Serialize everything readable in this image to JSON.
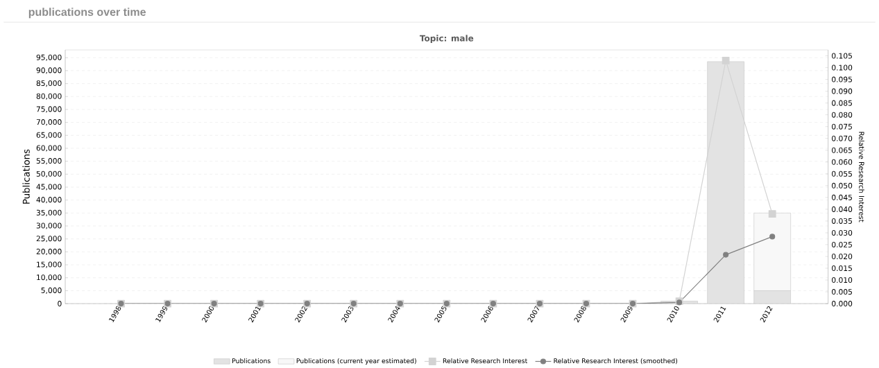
{
  "chart_data": {
    "type": "bar",
    "title": "publications over time",
    "subtitle": "Topic: male",
    "ylabel": "Publications",
    "y2label": "Relative Research Interest",
    "categories": [
      "1998",
      "1999",
      "2000",
      "2001",
      "2002",
      "2003",
      "2004",
      "2005",
      "2006",
      "2007",
      "2008",
      "2009",
      "2010",
      "2011",
      "2012"
    ],
    "stacked": true,
    "series": [
      {
        "name": "Publications",
        "color": "#e3e3e3",
        "values": [
          0,
          0,
          0,
          0,
          0,
          0,
          0,
          0,
          0,
          0,
          0,
          0,
          1000,
          93500,
          5000
        ]
      },
      {
        "name": "Publications (current year estimated)",
        "color": "#f8f8f8",
        "values": [
          null,
          null,
          null,
          null,
          null,
          null,
          null,
          null,
          null,
          null,
          null,
          null,
          null,
          null,
          30000
        ]
      },
      {
        "name": "Relative Research Interest",
        "type": "line",
        "axis": "y2",
        "marker": "square",
        "color": "#d3d3d3",
        "values": [
          0,
          0,
          0,
          0,
          0,
          0,
          0,
          0,
          0,
          0,
          0,
          0,
          0.001,
          0.103,
          0.038
        ]
      },
      {
        "name": "Relative Research Interest (smoothed)",
        "type": "line",
        "axis": "y2",
        "marker": "circle",
        "color": "#808080",
        "values": [
          0,
          0,
          0,
          0,
          0,
          0,
          0,
          0,
          0,
          0,
          0,
          0,
          0.0005,
          0.0207,
          0.0284
        ]
      }
    ],
    "ylim": [
      0,
      98000
    ],
    "yticks": [
      0,
      {
        "value": 5000,
        "label": "5,000"
      },
      {
        "value": 10000,
        "label": "10,000"
      },
      {
        "value": 15000,
        "label": "15,000"
      },
      {
        "value": 20000,
        "label": "20,000"
      },
      {
        "value": 25000,
        "label": "25,000"
      },
      {
        "value": 30000,
        "label": "30,000"
      },
      {
        "value": 35000,
        "label": "35,000"
      },
      {
        "value": 40000,
        "label": "40,000"
      },
      {
        "value": 45000,
        "label": "45,000"
      },
      {
        "value": 50000,
        "label": "50,000"
      },
      {
        "value": 55000,
        "label": "55,000"
      },
      {
        "value": 60000,
        "label": "60,000"
      },
      {
        "value": 65000,
        "label": "65,000"
      },
      {
        "value": 70000,
        "label": "70,000"
      },
      {
        "value": 75000,
        "label": "75,000"
      },
      {
        "value": 80000,
        "label": "80,000"
      },
      {
        "value": 85000,
        "label": "85,000"
      },
      {
        "value": 90000,
        "label": "90,000"
      },
      {
        "value": 95000,
        "label": "95,000"
      }
    ],
    "y2lim": [
      0,
      0.1075
    ],
    "y2ticks": [
      {
        "value": 0,
        "label": "0.000"
      },
      0.005,
      {
        "value": 0.01,
        "label": "0.010"
      },
      0.015,
      {
        "value": 0.02,
        "label": "0.020"
      },
      0.025,
      {
        "value": 0.03,
        "label": "0.030"
      },
      0.035,
      {
        "value": 0.04,
        "label": "0.040"
      },
      0.045,
      {
        "value": 0.05,
        "label": "0.050"
      },
      0.055,
      {
        "value": 0.06,
        "label": "0.060"
      },
      0.065,
      {
        "value": 0.07,
        "label": "0.070"
      },
      0.075,
      {
        "value": 0.08,
        "label": "0.080"
      },
      0.085,
      {
        "value": 0.09,
        "label": "0.090"
      },
      0.095,
      {
        "value": 0.1,
        "label": "0.100"
      },
      0.105
    ],
    "grid": "y",
    "legend": "bottom",
    "line_style": "solid"
  }
}
